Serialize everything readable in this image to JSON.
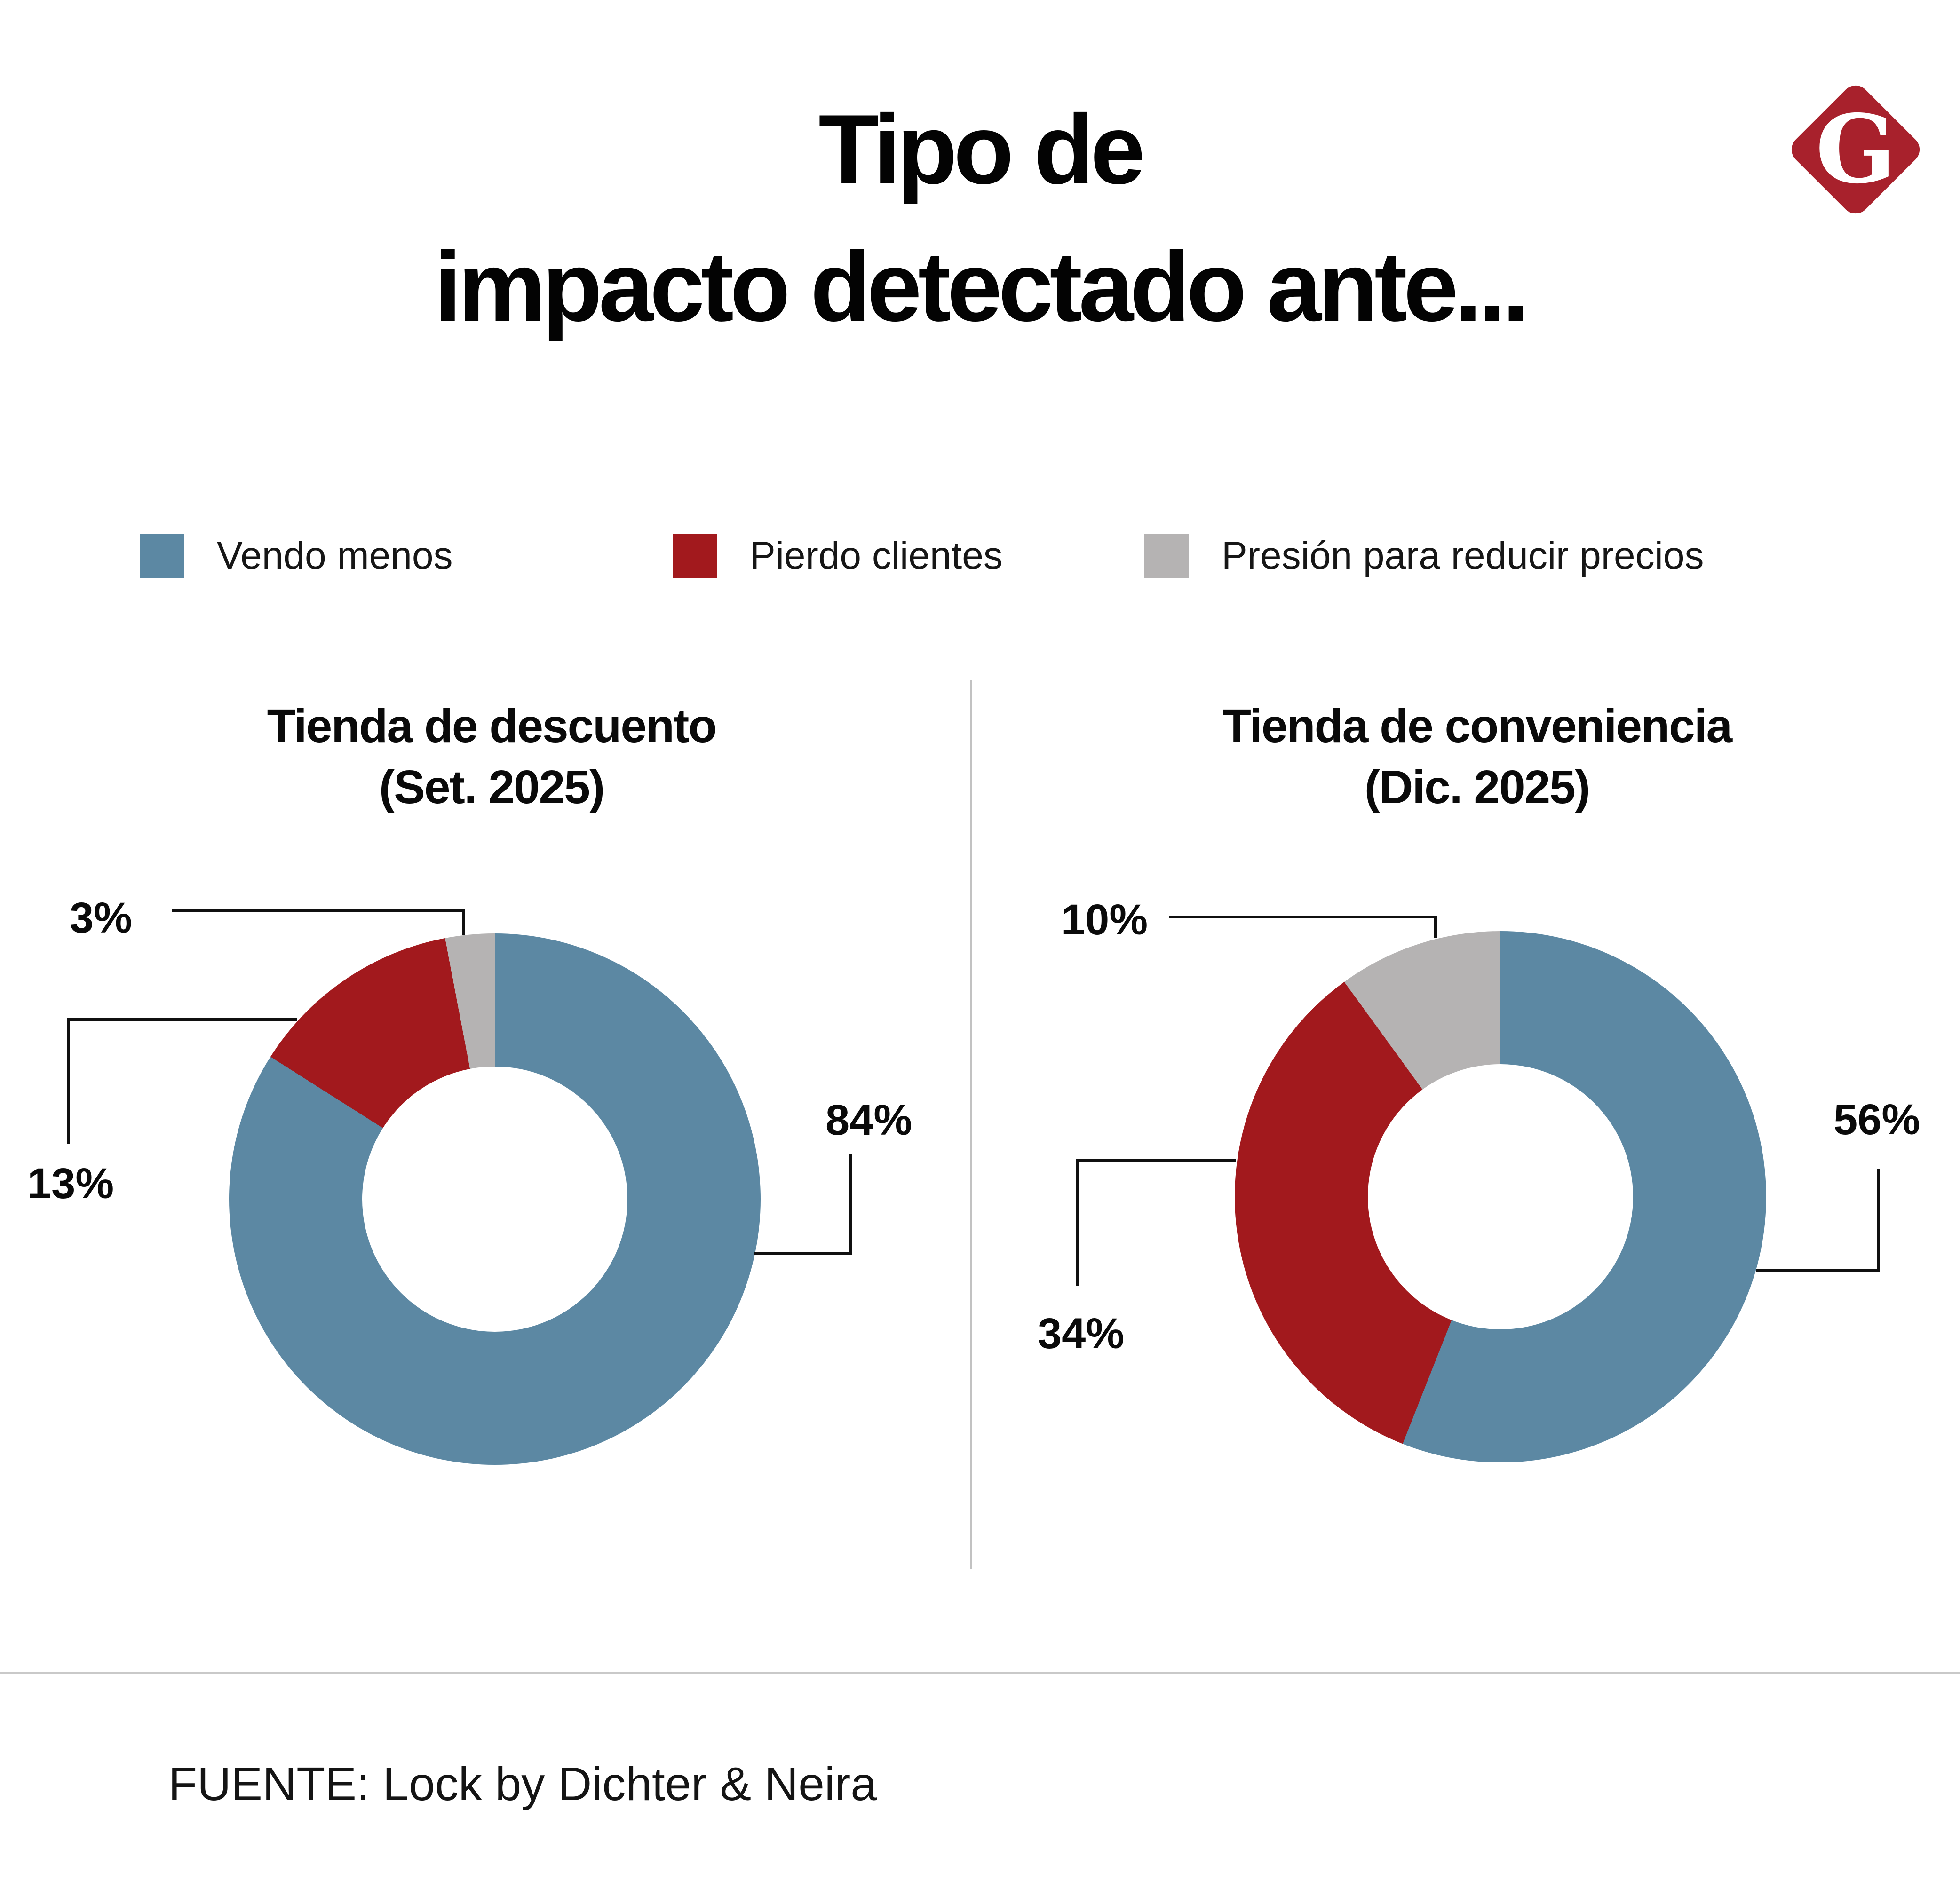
{
  "title": {
    "line1": "Tipo de",
    "line2": "impacto detectado ante..."
  },
  "logo": {
    "letter": "G",
    "color": "#a8212c"
  },
  "legend": {
    "items": [
      {
        "label": "Vendo menos",
        "color": "#5c88a3"
      },
      {
        "label": "Pierdo clientes",
        "color": "#a2191d"
      },
      {
        "label": "Presión para reducir precios",
        "color": "#b5b3b3"
      }
    ]
  },
  "charts": [
    {
      "title_line1": "Tienda de descuento",
      "title_line2": "(Set. 2025)",
      "slices": [
        {
          "name": "Vendo menos",
          "value": 84,
          "label": "84%"
        },
        {
          "name": "Pierdo clientes",
          "value": 13,
          "label": "13%"
        },
        {
          "name": "Presión para reducir precios",
          "value": 3,
          "label": "3%"
        }
      ]
    },
    {
      "title_line1": "Tienda de conveniencia",
      "title_line2": "(Dic. 2025)",
      "slices": [
        {
          "name": "Vendo menos",
          "value": 56,
          "label": "56%"
        },
        {
          "name": "Pierdo clientes",
          "value": 34,
          "label": "34%"
        },
        {
          "name": "Presión para reducir precios",
          "value": 10,
          "label": "10%"
        }
      ]
    }
  ],
  "footer": {
    "source": "FUENTE: Lock by Dichter & Neira"
  },
  "chart_data": [
    {
      "type": "pie",
      "style": "donut",
      "title": "Tienda de descuento (Set. 2025)",
      "categories": [
        "Vendo menos",
        "Pierdo clientes",
        "Presión para reducir precios"
      ],
      "values": [
        84,
        13,
        3
      ],
      "labels": [
        "84%",
        "13%",
        "3%"
      ],
      "unit": "%",
      "colors": [
        "#5c88a3",
        "#a2191d",
        "#b5b3b3"
      ],
      "start_angle_deg": 0,
      "direction": "clockwise",
      "inner_radius_ratio": 0.5,
      "legend_position": "top"
    },
    {
      "type": "pie",
      "style": "donut",
      "title": "Tienda de conveniencia (Dic. 2025)",
      "categories": [
        "Vendo menos",
        "Pierdo clientes",
        "Presión para reducir precios"
      ],
      "values": [
        56,
        34,
        10
      ],
      "labels": [
        "56%",
        "34%",
        "10%"
      ],
      "unit": "%",
      "colors": [
        "#5c88a3",
        "#a2191d",
        "#b5b3b3"
      ],
      "start_angle_deg": 0,
      "direction": "clockwise",
      "inner_radius_ratio": 0.5,
      "legend_position": "top"
    }
  ]
}
